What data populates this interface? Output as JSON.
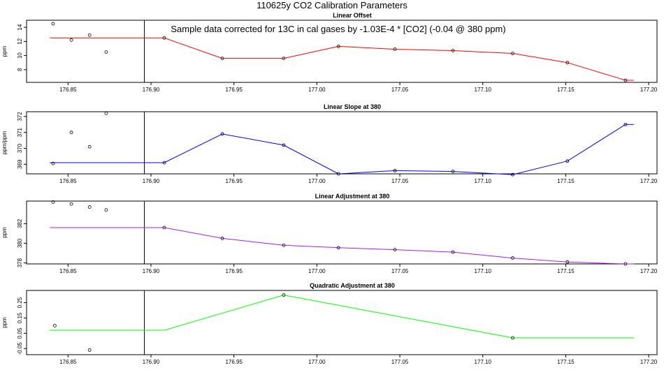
{
  "page": {
    "title": "110625y   CO2 Calibration Parameters"
  },
  "chart_data": [
    {
      "type": "line",
      "title": "Linear Offset",
      "ylabel": "ppm",
      "annotation": "Sample data corrected for 13C in cal gases by -1.03E-4 * [CO2] (-0.04 @ 380 ppm)",
      "color": "#ff0000",
      "xlim": [
        176.825,
        177.205
      ],
      "ylim": [
        6.2,
        15.0
      ],
      "xticks": [
        176.85,
        176.9,
        176.95,
        177.0,
        177.05,
        177.1,
        177.15,
        177.2
      ],
      "xtick_labels": [
        "176.85",
        "176.90",
        "176.95",
        "177.00",
        "177.05",
        "177.10",
        "177.15",
        "177.20"
      ],
      "yticks": [
        8,
        10,
        12,
        14
      ],
      "ytick_labels": [
        "8",
        "10",
        "12",
        "14"
      ],
      "vline_x": 176.896,
      "line_x": [
        176.839,
        176.908,
        176.943,
        176.98,
        177.013,
        177.047,
        177.082,
        177.118,
        177.151,
        177.186,
        177.191
      ],
      "line_y": [
        12.5,
        12.5,
        9.6,
        9.6,
        11.3,
        10.9,
        10.7,
        10.3,
        9.0,
        6.5,
        6.5
      ],
      "points_x": [
        176.841,
        176.852,
        176.863,
        176.873,
        176.908,
        176.943,
        176.98,
        177.013,
        177.047,
        177.082,
        177.118,
        177.151,
        177.186
      ],
      "points_y": [
        14.5,
        12.2,
        12.9,
        10.5,
        12.5,
        9.6,
        9.6,
        11.3,
        10.9,
        10.7,
        10.3,
        9.0,
        6.5
      ]
    },
    {
      "type": "line",
      "title": "Linear Slope at 380",
      "ylabel": "ppm/ppm",
      "color": "#0000ff",
      "xlim": [
        176.825,
        177.205
      ],
      "ylim": [
        368.4,
        372.3
      ],
      "xticks": [
        176.85,
        176.9,
        176.95,
        177.0,
        177.05,
        177.1,
        177.15,
        177.2
      ],
      "xtick_labels": [
        "176.85",
        "176.90",
        "176.95",
        "177.00",
        "177.05",
        "177.10",
        "177.15",
        "177.20"
      ],
      "yticks": [
        369,
        370,
        371,
        372
      ],
      "ytick_labels": [
        "369",
        "370",
        "371",
        "372"
      ],
      "vline_x": 176.896,
      "line_x": [
        176.839,
        176.908,
        176.943,
        176.98,
        177.013,
        177.047,
        177.082,
        177.118,
        177.151,
        177.186,
        177.191
      ],
      "line_y": [
        369.1,
        369.1,
        370.9,
        370.2,
        368.4,
        368.6,
        368.55,
        368.35,
        369.2,
        371.5,
        371.5
      ],
      "points_x": [
        176.841,
        176.852,
        176.863,
        176.873,
        176.908,
        176.943,
        176.98,
        177.013,
        177.047,
        177.082,
        177.118,
        177.151,
        177.186
      ],
      "points_y": [
        369.05,
        371.0,
        370.1,
        372.2,
        369.1,
        370.9,
        370.2,
        368.4,
        368.6,
        368.55,
        368.35,
        369.2,
        371.5
      ]
    },
    {
      "type": "line",
      "title": "Linear Adjustment at 380",
      "ylabel": "ppm",
      "color": "#a020f0",
      "xlim": [
        176.825,
        177.205
      ],
      "ylim": [
        377.9,
        384.3
      ],
      "xticks": [
        176.85,
        176.9,
        176.95,
        177.0,
        177.05,
        177.1,
        177.15,
        177.2
      ],
      "xtick_labels": [
        "176.85",
        "176.90",
        "176.95",
        "177.00",
        "177.05",
        "177.10",
        "177.15",
        "177.20"
      ],
      "yticks": [
        378,
        380,
        382
      ],
      "ytick_labels": [
        "378",
        "380",
        "382"
      ],
      "vline_x": 176.896,
      "line_x": [
        176.839,
        176.908,
        176.943,
        176.98,
        177.013,
        177.047,
        177.082,
        177.118,
        177.151,
        177.186,
        177.191
      ],
      "line_y": [
        381.6,
        381.6,
        380.5,
        379.8,
        379.55,
        379.35,
        379.1,
        378.5,
        378.1,
        377.9,
        377.9
      ],
      "points_x": [
        176.841,
        176.852,
        176.863,
        176.873,
        176.908,
        176.943,
        176.98,
        177.013,
        177.047,
        177.082,
        177.118,
        177.151,
        177.186
      ],
      "points_y": [
        384.2,
        384.0,
        383.7,
        383.4,
        381.6,
        380.5,
        379.8,
        379.55,
        379.35,
        379.1,
        378.5,
        378.1,
        377.9
      ]
    },
    {
      "type": "line",
      "title": "Quadratic Adjustment at 380",
      "ylabel": "ppm",
      "color": "#00ff00",
      "xlim": [
        176.825,
        177.205
      ],
      "ylim": [
        -0.09,
        0.33
      ],
      "xticks": [
        176.85,
        176.9,
        176.95,
        177.0,
        177.05,
        177.1,
        177.15,
        177.2
      ],
      "xtick_labels": [
        "176.85",
        "176.90",
        "176.95",
        "177.00",
        "177.05",
        "177.10",
        "177.15",
        "177.20"
      ],
      "yticks": [
        -0.05,
        0.05,
        0.15,
        0.25
      ],
      "ytick_labels": [
        "-0.05",
        "0.05",
        "0.15",
        "0.25"
      ],
      "vline_x": 176.896,
      "line_x": [
        176.839,
        176.908,
        176.98,
        177.118,
        177.191
      ],
      "line_y": [
        0.07,
        0.07,
        0.3,
        0.02,
        0.02
      ],
      "points_x": [
        176.842,
        176.863,
        176.98,
        177.118
      ],
      "points_y": [
        0.1,
        -0.06,
        0.3,
        0.02
      ]
    }
  ]
}
